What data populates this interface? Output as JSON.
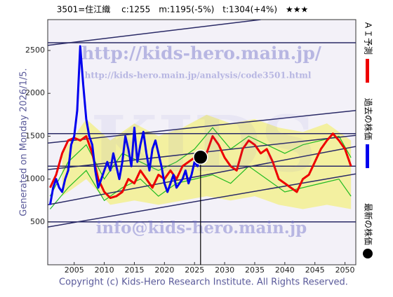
{
  "chart_data": {
    "type": "line",
    "title": "3501=住江織　 c:1255　m:1195(-5%)　t:1304(+4%)　★★★",
    "generated": "Generated on Monday 2026/1/5.",
    "copyright": "Copyright (c) Kids-Hero Research Institute. All Rights Reserved.",
    "watermarks": [
      "KIDS",
      "http://kids-hero.main.jp/",
      "http://kids-hero.main.jp/analysis/code3501.html",
      "info@kids-hero.main.jp"
    ],
    "xlim": [
      2000.6,
      2051.8
    ],
    "ylim": [
      0,
      2860
    ],
    "xticks": [
      2005,
      2010,
      2015,
      2020,
      2025,
      2030,
      2035,
      2040,
      2045,
      2050
    ],
    "yticks": [
      500,
      1000,
      1500,
      2000,
      2500
    ],
    "series": [
      {
        "name": "過去の株価",
        "color": "#0000ee",
        "x": [
          2001,
          2001.5,
          2002,
          2002.5,
          2003,
          2003.5,
          2004,
          2004.5,
          2005,
          2005.5,
          2006,
          2006.5,
          2007,
          2007.5,
          2008,
          2008.5,
          2009,
          2009.5,
          2010,
          2010.5,
          2011,
          2011.5,
          2012,
          2012.5,
          2013,
          2013.5,
          2014,
          2014.5,
          2015,
          2015.5,
          2016,
          2016.5,
          2017,
          2017.5,
          2018,
          2018.5,
          2019,
          2019.5,
          2020,
          2020.5,
          2021,
          2021.5,
          2022,
          2022.5,
          2023,
          2023.5,
          2024,
          2024.5,
          2025,
          2025.5,
          2026
        ],
        "values": [
          700,
          900,
          1000,
          900,
          850,
          1000,
          1100,
          1400,
          1500,
          1800,
          2550,
          2100,
          1700,
          1500,
          1400,
          1100,
          900,
          1000,
          1100,
          1200,
          1100,
          1300,
          1150,
          1000,
          1200,
          1500,
          1350,
          1150,
          1600,
          1200,
          1400,
          1550,
          1300,
          1100,
          1350,
          1450,
          1300,
          1150,
          950,
          850,
          950,
          1050,
          900,
          950,
          1000,
          1100,
          950,
          1050,
          1200,
          1150,
          1255
        ]
      },
      {
        "name": "ＡＩ予測",
        "color": "#ee0000",
        "x": [
          2001,
          2002,
          2003,
          2004,
          2005,
          2006,
          2007,
          2008,
          2009,
          2010,
          2011,
          2012,
          2013,
          2014,
          2015,
          2016,
          2017,
          2018,
          2019,
          2020,
          2021,
          2022,
          2023,
          2024,
          2025,
          2026,
          2027,
          2028,
          2029,
          2030,
          2031,
          2032,
          2033,
          2034,
          2035,
          2036,
          2037,
          2038,
          2039,
          2040,
          2041,
          2042,
          2043,
          2044,
          2045,
          2046,
          2047,
          2048,
          2049,
          2050,
          2051
        ],
        "values": [
          900,
          1050,
          1300,
          1450,
          1480,
          1450,
          1500,
          1300,
          1000,
          850,
          780,
          800,
          850,
          1000,
          950,
          1100,
          1000,
          900,
          1050,
          1000,
          1100,
          1000,
          1150,
          1200,
          1250,
          1200,
          1300,
          1500,
          1400,
          1250,
          1150,
          1100,
          1350,
          1450,
          1400,
          1300,
          1350,
          1200,
          1000,
          950,
          900,
          850,
          1000,
          1050,
          1200,
          1350,
          1450,
          1530,
          1450,
          1350,
          1150
        ]
      }
    ],
    "band": {
      "color": "#f2f07a",
      "x": [
        2003,
        2007,
        2011,
        2015,
        2019,
        2023,
        2027,
        2031,
        2035,
        2039,
        2043,
        2047,
        2051
      ],
      "upper": [
        1300,
        1700,
        1450,
        1650,
        1500,
        1600,
        1750,
        1650,
        1700,
        1600,
        1550,
        1650,
        1450
      ],
      "lower": [
        800,
        1000,
        700,
        750,
        700,
        750,
        800,
        750,
        800,
        700,
        650,
        700,
        650
      ]
    },
    "green_lines": {
      "color": "#22bb22",
      "x": [
        2001,
        2004,
        2007,
        2010,
        2013,
        2016,
        2019,
        2022,
        2025,
        2028,
        2031,
        2034,
        2037,
        2040,
        2043,
        2046,
        2049,
        2051
      ],
      "lines": [
        [
          800,
          1200,
          1400,
          1000,
          1300,
          1200,
          1100,
          1200,
          1350,
          1600,
          1350,
          1500,
          1400,
          1300,
          1400,
          1450,
          1500,
          1250
        ],
        [
          650,
          900,
          1100,
          750,
          900,
          1000,
          800,
          950,
          1000,
          1050,
          950,
          1150,
          1000,
          850,
          900,
          950,
          1000,
          800
        ]
      ]
    },
    "trend_lines": [
      {
        "x": [
          2000.6,
          2051.8
        ],
        "values": [
          2590,
          2590
        ]
      },
      {
        "x": [
          2000.6,
          2036
        ],
        "values": [
          2560,
          2860
        ]
      },
      {
        "x": [
          2000.6,
          2051.8
        ],
        "values": [
          1530,
          1530
        ]
      },
      {
        "x": [
          2000.6,
          2051.8
        ],
        "values": [
          1420,
          1800
        ]
      },
      {
        "x": [
          2000.6,
          2051.8
        ],
        "values": [
          1150,
          1150
        ]
      },
      {
        "x": [
          2000.6,
          2051.8
        ],
        "values": [
          1110,
          1510
        ]
      },
      {
        "x": [
          2000.6,
          2051.8
        ],
        "values": [
          700,
          1380
        ]
      },
      {
        "x": [
          2000.6,
          2051.8
        ],
        "values": [
          440,
          1060
        ]
      },
      {
        "x": [
          2000.6,
          2051.8
        ],
        "values": [
          500,
          500
        ]
      }
    ],
    "latest": {
      "name": "最新の株価",
      "x": 2026,
      "value": 1255,
      "color": "#000000"
    }
  }
}
